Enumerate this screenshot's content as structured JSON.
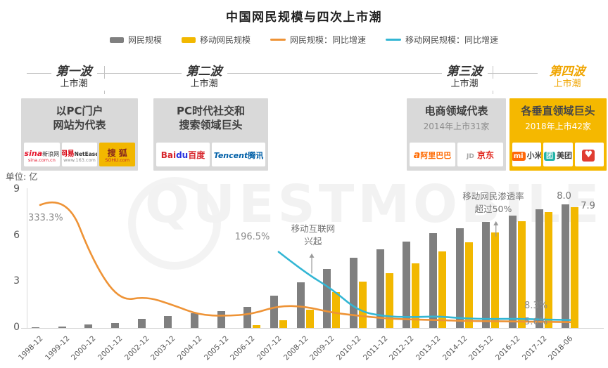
{
  "title": "中国网民规模与四次上市潮",
  "watermark": "QUESTMOBILE",
  "legend": [
    {
      "label": "网民规模",
      "type": "bar",
      "color": "#7f7f7f"
    },
    {
      "label": "移动网民规模",
      "type": "bar",
      "color": "#f2b800"
    },
    {
      "label": "网民规模：同比增速",
      "type": "line",
      "color": "#ee9336"
    },
    {
      "label": "移动网民规模：同比增速",
      "type": "line",
      "color": "#33b6d4"
    }
  ],
  "waves": [
    {
      "name": "第一波",
      "sub": "上市潮",
      "color": "#333333",
      "box": {
        "bg": "#d9d9d9",
        "fg": "#404040",
        "title_lines": [
          "以PC门户",
          "网站为代表"
        ],
        "subtitle": "",
        "logos": [
          {
            "name": "sina-logo",
            "bg": "#ffffff",
            "parts": [
              {
                "t": "sina",
                "c": "#e6162d",
                "b": true,
                "i": true,
                "s": 11
              },
              {
                "t": "新浪网",
                "c": "#333333",
                "s": 8
              }
            ],
            "sub": {
              "t": "sina.com.cn",
              "c": "#e6162d"
            }
          },
          {
            "name": "netease-logo",
            "bg": "#ffffff",
            "parts": [
              {
                "t": "网易",
                "c": "#d7000f",
                "b": true,
                "s": 10
              },
              {
                "t": "NetEase",
                "c": "#333333",
                "b": true,
                "s": 7.5
              }
            ],
            "sub": {
              "t": "www.163.com",
              "c": "#8c8c8c"
            }
          },
          {
            "name": "sohu-logo",
            "bg": "#f2b700",
            "parts": [
              {
                "t": "搜 狐",
                "c": "#86261d",
                "b": true,
                "s": 12
              }
            ],
            "sub": {
              "t": "SOHU.com",
              "c": "#c1272d"
            }
          }
        ]
      }
    },
    {
      "name": "第二波",
      "sub": "上市潮",
      "color": "#333333",
      "box": {
        "bg": "#d9d9d9",
        "fg": "#404040",
        "title_lines": [
          "PC时代社交和",
          "搜索领域巨头"
        ],
        "subtitle": "",
        "logos": [
          {
            "name": "baidu-logo",
            "bg": "#ffffff",
            "parts": [
              {
                "t": "Bai",
                "c": "#d7262c",
                "b": true,
                "s": 12
              },
              {
                "t": "du",
                "c": "#2932e1",
                "b": true,
                "s": 12
              },
              {
                "t": "百度",
                "c": "#d7262c",
                "b": true,
                "s": 12
              }
            ]
          },
          {
            "name": "tencent-logo",
            "bg": "#ffffff",
            "parts": [
              {
                "t": "Tencent",
                "c": "#005fa7",
                "b": true,
                "i": true,
                "s": 11
              },
              {
                "t": "腾讯",
                "c": "#005fa7",
                "b": true,
                "s": 11
              }
            ]
          }
        ]
      }
    },
    {
      "name": "第三波",
      "sub": "上市潮",
      "color": "#333333",
      "box": {
        "bg": "#d9d9d9",
        "fg": "#404040",
        "title_lines": [
          "电商领域代表"
        ],
        "subtitle": "2014年上市31家",
        "subtitle_color": "#8c8c8c",
        "logos": [
          {
            "name": "alibaba-logo",
            "bg": "#ffffff",
            "parts": [
              {
                "t": "a",
                "c": "#ff6a00",
                "b": true,
                "i": true,
                "s": 14
              },
              {
                "t": "阿里巴巴",
                "c": "#ff6a00",
                "b": true,
                "s": 11
              }
            ]
          },
          {
            "name": "jd-logo",
            "bg": "#ffffff",
            "parts": [
              {
                "t": "JD",
                "c": "#a6a6a6",
                "b": true,
                "s": 9
              },
              {
                "t": " 京东",
                "c": "#e1251b",
                "b": true,
                "s": 12
              }
            ]
          }
        ]
      }
    },
    {
      "name": "第四波",
      "sub": "上市潮",
      "color": "#f0a500",
      "box": {
        "bg": "#f5b800",
        "fg": "#474747",
        "title_lines": [
          "各垂直领域巨头"
        ],
        "subtitle": "2018年上市42家",
        "subtitle_color": "#ffffff",
        "logos": [
          {
            "name": "xiaomi-logo",
            "bg": "#ffffff",
            "parts": [
              {
                "t": "mi",
                "c": "#ffffff",
                "bg": "#ff6709",
                "b": true,
                "s": 10
              },
              {
                "t": "小米",
                "c": "#404040",
                "b": true,
                "s": 11
              }
            ]
          },
          {
            "name": "meituan-logo",
            "bg": "#ffffff",
            "parts": [
              {
                "t": "团",
                "c": "#ffffff",
                "bg": "#23b2a7",
                "b": true,
                "s": 10
              },
              {
                "t": "美团",
                "c": "#404040",
                "b": true,
                "s": 11
              }
            ]
          },
          {
            "name": "heart-logo",
            "bg": "#ffffff",
            "parts": [
              {
                "t": "♥",
                "c": "#ffffff",
                "bg": "#e03c31",
                "b": true,
                "s": 13
              }
            ]
          }
        ]
      }
    }
  ],
  "chart_data": {
    "type": "bar+line",
    "unit_label": "单位: 亿",
    "categories": [
      "1998-12",
      "1999-12",
      "2000-12",
      "2001-12",
      "2002-12",
      "2003-12",
      "2004-12",
      "2005-12",
      "2006-12",
      "2007-12",
      "2008-12",
      "2009-12",
      "2010-12",
      "2011-12",
      "2012-12",
      "2013-12",
      "2014-12",
      "2015-12",
      "2016-12",
      "2017-12",
      "2018-06"
    ],
    "yticks": [
      9,
      6,
      3,
      0
    ],
    "ylim": [
      0,
      9
    ],
    "grid": false,
    "series": [
      {
        "name": "网民规模",
        "type": "bar",
        "color": "#7f7f7f",
        "values": [
          0.02,
          0.09,
          0.23,
          0.34,
          0.59,
          0.8,
          0.94,
          1.11,
          1.37,
          2.1,
          2.98,
          3.84,
          4.57,
          5.13,
          5.64,
          6.18,
          6.49,
          6.88,
          7.31,
          7.72,
          8.02
        ]
      },
      {
        "name": "移动网民规模",
        "type": "bar",
        "color": "#f2b800",
        "values": [
          null,
          null,
          null,
          null,
          null,
          null,
          null,
          null,
          0.17,
          0.5,
          1.18,
          2.33,
          3.03,
          3.56,
          4.2,
          5.0,
          5.57,
          6.2,
          6.95,
          7.53,
          7.88
        ]
      },
      {
        "name": "网民规模：同比增速",
        "type": "line",
        "color": "#ee9336",
        "axis": "secondary",
        "start_index": 0,
        "values_axis_units": [
          8.0,
          8.7,
          4.3,
          1.75,
          2.05,
          1.5,
          0.85,
          0.78,
          0.9,
          1.45,
          1.4,
          1.0,
          0.8,
          0.62,
          0.55,
          0.52,
          0.45,
          0.44,
          0.42,
          0.4,
          0.38
        ]
      },
      {
        "name": "移动网民规模：同比增速",
        "type": "line",
        "color": "#33b6d4",
        "axis": "secondary",
        "start_index": 9,
        "values_axis_units": [
          4.95,
          3.6,
          2.55,
          1.1,
          0.75,
          0.7,
          0.76,
          0.62,
          0.58,
          0.6,
          0.55,
          0.52
        ]
      }
    ],
    "end_labels": [
      {
        "text": "8.0",
        "series": "网民规模"
      },
      {
        "text": "7.9",
        "series": "移动网民规模"
      }
    ],
    "annotations": [
      {
        "text": "333.3%",
        "xi": -0.45,
        "v": 7.5,
        "cls": "pct"
      },
      {
        "text": "196.5%",
        "xi": 7.35,
        "v": 6.28,
        "cls": "pct"
      },
      {
        "text": "移动互联网\n兴起",
        "xi": 10.3,
        "v": 6.85,
        "cls": "note",
        "center": true
      },
      {
        "text": "移动网民渗透率\n超过50%",
        "xi": 17.1,
        "v": 8.95,
        "cls": "note",
        "center": true
      },
      {
        "text": "8.3%",
        "xi": 18.27,
        "v": 1.8,
        "cls": "pct"
      },
      {
        "text": "5.6%",
        "xi": 18.27,
        "v": 0.72,
        "cls": "pct"
      }
    ],
    "arrows": [
      {
        "xi": 10.25,
        "v_head": 4.85,
        "v_tail": 3.55
      },
      {
        "xi": 17.2,
        "v_head": 6.95,
        "v_tail": 5.95
      }
    ]
  }
}
